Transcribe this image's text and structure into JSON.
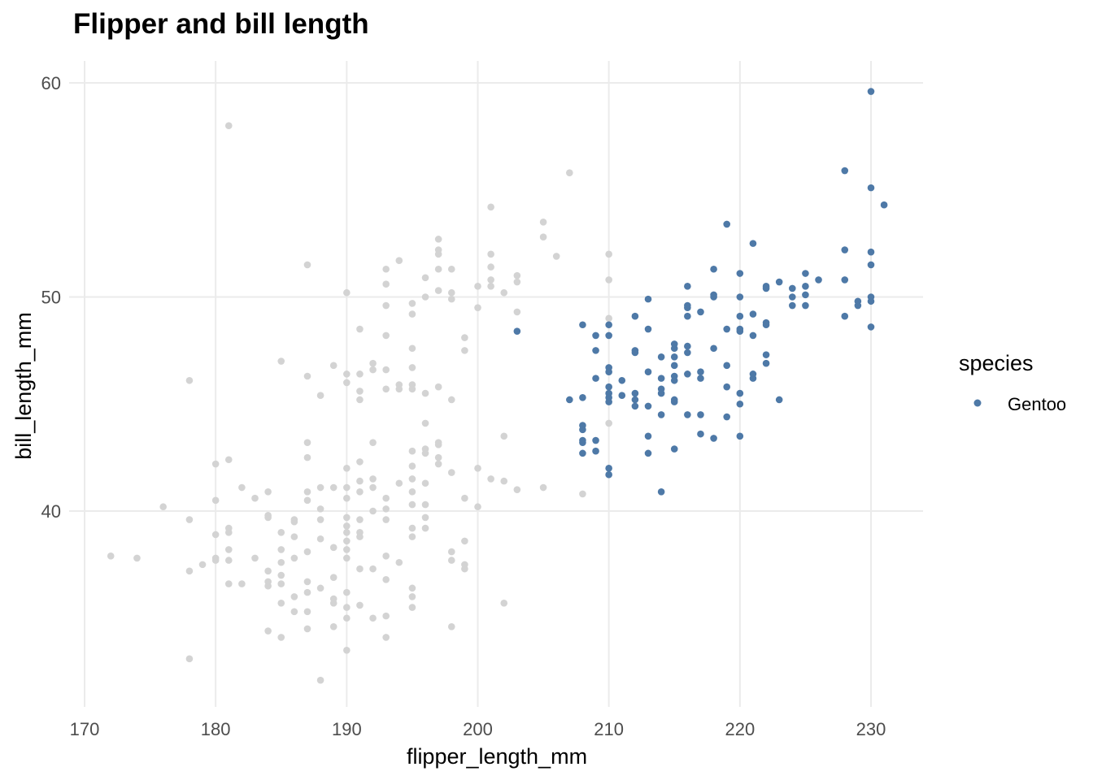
{
  "chart_data": {
    "type": "scatter",
    "title": "Flipper and bill length",
    "xlabel": "flipper_length_mm",
    "ylabel": "bill_length_mm",
    "xlim": [
      167,
      234
    ],
    "ylim": [
      31,
      61
    ],
    "xticks": [
      170,
      180,
      190,
      200,
      210,
      220,
      230
    ],
    "yticks": [
      40,
      50,
      60
    ],
    "grid": true,
    "legend": {
      "title": "species",
      "placement": "right",
      "entries": [
        "Gentoo"
      ]
    },
    "colors": {
      "highlight": "#4e79a7",
      "background": "#d3d3d3",
      "grid": "#ebebeb"
    },
    "background_points": [
      [
        181,
        58.0
      ],
      [
        178,
        46.1
      ],
      [
        178,
        39.6
      ],
      [
        178,
        37.2
      ],
      [
        178,
        33.1
      ],
      [
        172,
        37.9
      ],
      [
        174,
        37.8
      ],
      [
        176,
        40.2
      ],
      [
        179,
        37.5
      ],
      [
        180,
        42.2
      ],
      [
        180,
        40.5
      ],
      [
        180,
        38.9
      ],
      [
        180,
        37.8
      ],
      [
        180,
        37.7
      ],
      [
        181,
        42.4
      ],
      [
        181,
        39.2
      ],
      [
        181,
        39.0
      ],
      [
        181,
        38.2
      ],
      [
        181,
        37.7
      ],
      [
        181,
        36.6
      ],
      [
        182,
        41.1
      ],
      [
        182,
        36.6
      ],
      [
        183,
        40.6
      ],
      [
        183,
        37.8
      ],
      [
        184,
        40.9
      ],
      [
        184,
        39.8
      ],
      [
        184,
        39.7
      ],
      [
        184,
        37.2
      ],
      [
        184,
        36.7
      ],
      [
        184,
        36.5
      ],
      [
        184,
        34.4
      ],
      [
        185,
        47.0
      ],
      [
        185,
        39.0
      ],
      [
        185,
        38.2
      ],
      [
        185,
        37.6
      ],
      [
        185,
        37.0
      ],
      [
        185,
        36.6
      ],
      [
        185,
        35.7
      ],
      [
        185,
        34.1
      ],
      [
        186,
        39.6
      ],
      [
        186,
        39.5
      ],
      [
        186,
        38.8
      ],
      [
        186,
        37.8
      ],
      [
        186,
        36.0
      ],
      [
        186,
        35.3
      ],
      [
        187,
        51.5
      ],
      [
        187,
        46.3
      ],
      [
        187,
        43.2
      ],
      [
        187,
        42.5
      ],
      [
        187,
        40.9
      ],
      [
        187,
        40.5
      ],
      [
        187,
        38.1
      ],
      [
        187,
        36.7
      ],
      [
        187,
        36.2
      ],
      [
        187,
        35.3
      ],
      [
        187,
        34.5
      ],
      [
        188,
        45.4
      ],
      [
        188,
        41.1
      ],
      [
        188,
        40.1
      ],
      [
        188,
        39.6
      ],
      [
        188,
        38.7
      ],
      [
        188,
        36.4
      ],
      [
        188,
        32.1
      ],
      [
        189,
        46.8
      ],
      [
        189,
        41.1
      ],
      [
        189,
        38.3
      ],
      [
        189,
        36.9
      ],
      [
        189,
        35.9
      ],
      [
        189,
        35.7
      ],
      [
        189,
        34.6
      ],
      [
        190,
        50.2
      ],
      [
        190,
        46.4
      ],
      [
        190,
        46.0
      ],
      [
        190,
        42.0
      ],
      [
        190,
        41.1
      ],
      [
        190,
        40.6
      ],
      [
        190,
        39.7
      ],
      [
        190,
        39.3
      ],
      [
        190,
        39.0
      ],
      [
        190,
        38.6
      ],
      [
        190,
        38.2
      ],
      [
        190,
        37.8
      ],
      [
        190,
        36.2
      ],
      [
        190,
        35.5
      ],
      [
        190,
        35.0
      ],
      [
        190,
        33.5
      ],
      [
        191,
        48.5
      ],
      [
        191,
        46.4
      ],
      [
        191,
        45.6
      ],
      [
        191,
        45.2
      ],
      [
        191,
        42.3
      ],
      [
        191,
        41.4
      ],
      [
        191,
        40.9
      ],
      [
        191,
        39.6
      ],
      [
        191,
        39.0
      ],
      [
        191,
        38.8
      ],
      [
        191,
        37.3
      ],
      [
        191,
        35.6
      ],
      [
        192,
        46.9
      ],
      [
        192,
        46.6
      ],
      [
        192,
        43.2
      ],
      [
        192,
        41.5
      ],
      [
        192,
        41.1
      ],
      [
        192,
        40.0
      ],
      [
        192,
        37.3
      ],
      [
        192,
        35.0
      ],
      [
        193,
        51.3
      ],
      [
        193,
        50.6
      ],
      [
        193,
        49.6
      ],
      [
        193,
        48.2
      ],
      [
        193,
        46.6
      ],
      [
        193,
        45.7
      ],
      [
        193,
        40.6
      ],
      [
        193,
        40.1
      ],
      [
        193,
        39.6
      ],
      [
        193,
        37.9
      ],
      [
        193,
        36.8
      ],
      [
        193,
        35.1
      ],
      [
        193,
        34.1
      ],
      [
        194,
        51.7
      ],
      [
        194,
        45.9
      ],
      [
        194,
        45.7
      ],
      [
        194,
        41.3
      ],
      [
        194,
        37.6
      ],
      [
        195,
        49.7
      ],
      [
        195,
        49.2
      ],
      [
        195,
        47.6
      ],
      [
        195,
        46.7
      ],
      [
        195,
        45.9
      ],
      [
        195,
        45.7
      ],
      [
        195,
        42.8
      ],
      [
        195,
        42.1
      ],
      [
        195,
        41.5
      ],
      [
        195,
        40.9
      ],
      [
        195,
        40.3
      ],
      [
        195,
        39.2
      ],
      [
        195,
        38.8
      ],
      [
        195,
        36.4
      ],
      [
        195,
        36.0
      ],
      [
        195,
        35.5
      ],
      [
        196,
        50.9
      ],
      [
        196,
        50.0
      ],
      [
        196,
        45.5
      ],
      [
        196,
        44.1
      ],
      [
        196,
        42.9
      ],
      [
        196,
        42.7
      ],
      [
        196,
        41.3
      ],
      [
        196,
        40.3
      ],
      [
        196,
        39.7
      ],
      [
        196,
        39.2
      ],
      [
        197,
        52.7
      ],
      [
        197,
        52.2
      ],
      [
        197,
        52.0
      ],
      [
        197,
        51.3
      ],
      [
        197,
        50.3
      ],
      [
        197,
        45.8
      ],
      [
        197,
        43.2
      ],
      [
        197,
        43.1
      ],
      [
        197,
        42.5
      ],
      [
        197,
        42.2
      ],
      [
        198,
        51.3
      ],
      [
        198,
        50.2
      ],
      [
        198,
        49.9
      ],
      [
        198,
        45.2
      ],
      [
        198,
        41.8
      ],
      [
        198,
        38.1
      ],
      [
        198,
        37.7
      ],
      [
        198,
        34.6
      ],
      [
        199,
        48.1
      ],
      [
        199,
        47.5
      ],
      [
        199,
        40.6
      ],
      [
        199,
        38.6
      ],
      [
        199,
        37.5
      ],
      [
        199,
        37.3
      ],
      [
        200,
        50.5
      ],
      [
        200,
        49.5
      ],
      [
        200,
        42.0
      ],
      [
        200,
        40.2
      ],
      [
        201,
        54.2
      ],
      [
        201,
        52.0
      ],
      [
        201,
        51.4
      ],
      [
        201,
        50.8
      ],
      [
        201,
        50.5
      ],
      [
        201,
        41.5
      ],
      [
        202,
        50.2
      ],
      [
        202,
        43.5
      ],
      [
        202,
        41.4
      ],
      [
        202,
        35.7
      ],
      [
        203,
        51.0
      ],
      [
        203,
        50.7
      ],
      [
        203,
        49.3
      ],
      [
        203,
        41.0
      ],
      [
        205,
        53.5
      ],
      [
        205,
        52.8
      ],
      [
        205,
        41.1
      ],
      [
        206,
        51.9
      ],
      [
        207,
        55.8
      ],
      [
        208,
        40.8
      ],
      [
        210,
        52.0
      ],
      [
        210,
        50.8
      ],
      [
        210,
        49.0
      ],
      [
        210,
        44.1
      ]
    ],
    "series": [
      {
        "name": "Gentoo",
        "points": [
          [
            203,
            48.4
          ],
          [
            207,
            45.2
          ],
          [
            208,
            48.7
          ],
          [
            208,
            45.3
          ],
          [
            208,
            44.0
          ],
          [
            208,
            43.8
          ],
          [
            208,
            43.3
          ],
          [
            208,
            43.2
          ],
          [
            208,
            42.7
          ],
          [
            209,
            48.2
          ],
          [
            209,
            47.5
          ],
          [
            209,
            46.2
          ],
          [
            209,
            43.3
          ],
          [
            209,
            42.8
          ],
          [
            210,
            48.7
          ],
          [
            210,
            48.2
          ],
          [
            210,
            46.7
          ],
          [
            210,
            46.5
          ],
          [
            210,
            45.8
          ],
          [
            210,
            45.5
          ],
          [
            210,
            45.3
          ],
          [
            210,
            45.1
          ],
          [
            210,
            42.0
          ],
          [
            210,
            41.7
          ],
          [
            211,
            46.1
          ],
          [
            211,
            45.4
          ],
          [
            212,
            49.1
          ],
          [
            212,
            47.5
          ],
          [
            212,
            47.4
          ],
          [
            212,
            45.5
          ],
          [
            212,
            45.2
          ],
          [
            212,
            44.9
          ],
          [
            213,
            49.9
          ],
          [
            213,
            48.5
          ],
          [
            213,
            46.5
          ],
          [
            213,
            44.9
          ],
          [
            213,
            43.5
          ],
          [
            213,
            42.7
          ],
          [
            214,
            47.2
          ],
          [
            214,
            46.2
          ],
          [
            214,
            45.7
          ],
          [
            214,
            45.5
          ],
          [
            214,
            44.5
          ],
          [
            214,
            40.9
          ],
          [
            215,
            47.8
          ],
          [
            215,
            47.6
          ],
          [
            215,
            47.2
          ],
          [
            215,
            46.8
          ],
          [
            215,
            46.3
          ],
          [
            215,
            46.1
          ],
          [
            215,
            45.2
          ],
          [
            215,
            45.1
          ],
          [
            215,
            42.9
          ],
          [
            216,
            50.5
          ],
          [
            216,
            49.6
          ],
          [
            216,
            49.5
          ],
          [
            216,
            49.1
          ],
          [
            216,
            47.7
          ],
          [
            216,
            47.4
          ],
          [
            216,
            46.4
          ],
          [
            216,
            44.5
          ],
          [
            217,
            49.3
          ],
          [
            217,
            46.5
          ],
          [
            217,
            46.2
          ],
          [
            217,
            44.5
          ],
          [
            217,
            43.6
          ],
          [
            218,
            51.3
          ],
          [
            218,
            50.1
          ],
          [
            218,
            50.0
          ],
          [
            218,
            47.6
          ],
          [
            218,
            43.4
          ],
          [
            219,
            53.4
          ],
          [
            219,
            48.5
          ],
          [
            219,
            46.8
          ],
          [
            219,
            45.8
          ],
          [
            219,
            44.4
          ],
          [
            220,
            51.1
          ],
          [
            220,
            50.0
          ],
          [
            220,
            49.1
          ],
          [
            220,
            48.5
          ],
          [
            220,
            48.4
          ],
          [
            220,
            45.5
          ],
          [
            220,
            45.0
          ],
          [
            220,
            43.5
          ],
          [
            221,
            52.5
          ],
          [
            221,
            49.2
          ],
          [
            221,
            48.2
          ],
          [
            221,
            46.4
          ],
          [
            221,
            46.2
          ],
          [
            222,
            50.5
          ],
          [
            222,
            50.4
          ],
          [
            222,
            48.8
          ],
          [
            222,
            48.7
          ],
          [
            222,
            47.3
          ],
          [
            222,
            46.9
          ],
          [
            223,
            50.7
          ],
          [
            223,
            45.2
          ],
          [
            224,
            50.4
          ],
          [
            224,
            50.0
          ],
          [
            224,
            49.6
          ],
          [
            225,
            51.1
          ],
          [
            225,
            50.5
          ],
          [
            225,
            50.1
          ],
          [
            225,
            49.6
          ],
          [
            226,
            50.8
          ],
          [
            228,
            55.9
          ],
          [
            228,
            52.2
          ],
          [
            228,
            50.8
          ],
          [
            228,
            49.1
          ],
          [
            229,
            49.8
          ],
          [
            229,
            49.6
          ],
          [
            230,
            59.6
          ],
          [
            230,
            55.1
          ],
          [
            230,
            52.1
          ],
          [
            230,
            51.5
          ],
          [
            230,
            50.0
          ],
          [
            230,
            49.8
          ],
          [
            230,
            48.6
          ],
          [
            231,
            54.3
          ]
        ]
      }
    ]
  }
}
